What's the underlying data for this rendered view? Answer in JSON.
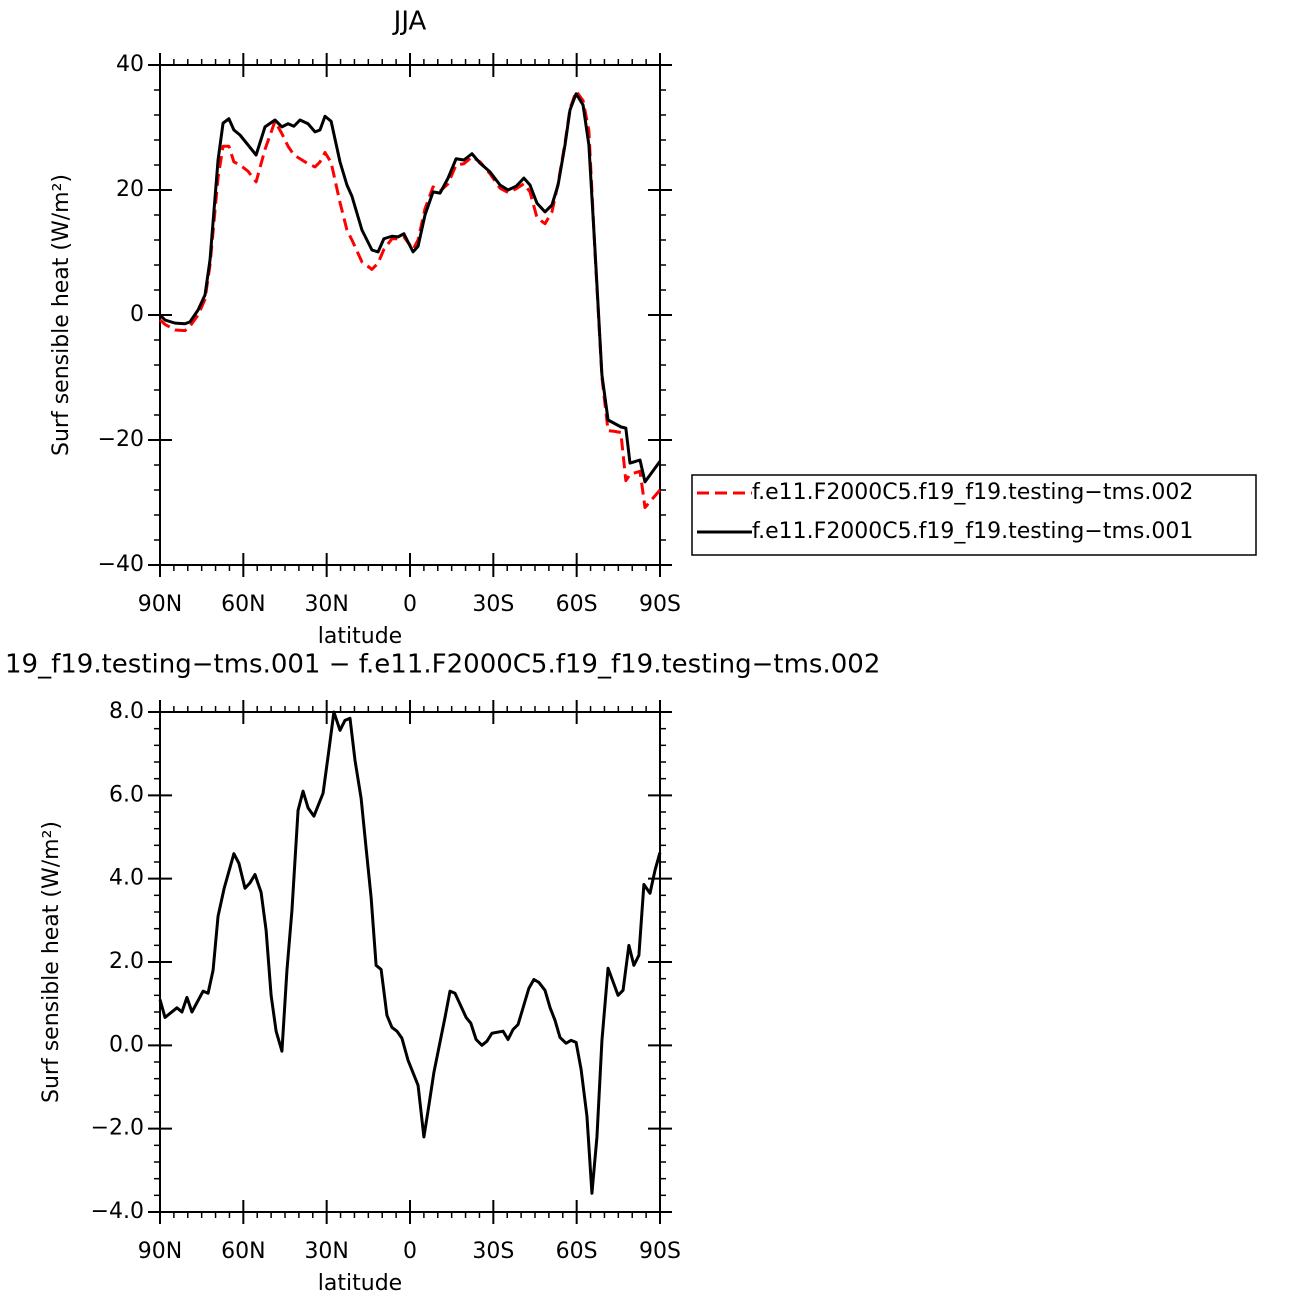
{
  "chart_data": [
    {
      "type": "line",
      "title": "JJA",
      "xlabel": "latitude",
      "ylabel": "Surf sensible heat (W/m²)",
      "x": [
        90,
        88.2,
        84.6,
        81,
        79.2,
        76.3,
        73.8,
        72,
        69.1,
        67.3,
        65.2,
        63.4,
        61.2,
        58.3,
        55.4,
        52.2,
        48.6,
        46.1,
        43.9,
        41.8,
        39.6,
        36.7,
        34.2,
        32.4,
        30.6,
        28.4,
        25.2,
        22.7,
        20.9,
        17.3,
        13.7,
        11.5,
        9.4,
        6.5,
        4.3,
        2.2,
        -1.1,
        -2.9,
        -5.4,
        -8.3,
        -10.8,
        -13.7,
        -16.6,
        -19.4,
        -22.3,
        -25.2,
        -28.8,
        -32.4,
        -35.3,
        -38.2,
        -41,
        -43.2,
        -45.7,
        -48.6,
        -51.1,
        -53.3,
        -55.8,
        -57.6,
        -59.8,
        -62.3,
        -64.4,
        -66.6,
        -69.1,
        -71.3,
        -73.4,
        -75.9,
        -77.7,
        -79.2,
        -82.8,
        -84.6,
        -90
      ],
      "series": [
        {
          "name": "f.e11.F2000C5.f19_f19.testing−tms.002",
          "color": "#ff0000",
          "line_style": "dashed",
          "values": [
            -0.8,
            -1.5,
            -2.4,
            -2.5,
            -1.8,
            0,
            2.5,
            8,
            22,
            27,
            27,
            24.5,
            24,
            23,
            21.3,
            26.5,
            31,
            29,
            27,
            25.6,
            25,
            24.2,
            23.7,
            24.5,
            26,
            24.4,
            18,
            13.6,
            12,
            8.5,
            7.3,
            8.3,
            10.5,
            12.2,
            12.2,
            12.5,
            10.5,
            12,
            17,
            20.5,
            19.8,
            21,
            24,
            24.2,
            25.3,
            24.5,
            22.6,
            20.3,
            19.6,
            20.2,
            21,
            19.7,
            15.6,
            14.6,
            16.5,
            21,
            27.5,
            33,
            35.8,
            34.3,
            29.5,
            10,
            -10,
            -18.5,
            -18.6,
            -18.8,
            -26.5,
            -25.5,
            -25,
            -30.8,
            -28
          ]
        },
        {
          "name": "f.e11.F2000C5.f19_f19.testing−tms.001",
          "color": "#000000",
          "line_style": "solid",
          "values": [
            0,
            -0.8,
            -1.3,
            -1.4,
            -1.1,
            0.8,
            3.2,
            8.8,
            24.8,
            30.7,
            31.4,
            29.6,
            28.8,
            27.2,
            25.6,
            30.1,
            31.2,
            30.1,
            30.6,
            30.2,
            31.2,
            30.6,
            29.3,
            29.6,
            31.8,
            31.0,
            24.5,
            20.8,
            19,
            13.6,
            10.4,
            10.1,
            12.2,
            12.6,
            12.5,
            13,
            10.1,
            11,
            16,
            19.7,
            19.5,
            21.9,
            25,
            24.8,
            25.8,
            24.3,
            22.9,
            20.8,
            20,
            20.6,
            21.9,
            20.8,
            17.9,
            16.5,
            17.6,
            20.8,
            27.2,
            32.8,
            35.4,
            33.6,
            27.2,
            10.4,
            -9.6,
            -16.8,
            -17.3,
            -17.9,
            -18.1,
            -23.7,
            -23.2,
            -26.7,
            -23.4
          ]
        }
      ],
      "xlim": [
        90,
        -90
      ],
      "xticks": [
        {
          "value": 90,
          "label": "90N"
        },
        {
          "value": 60,
          "label": "60N"
        },
        {
          "value": 30,
          "label": "30N"
        },
        0,
        {
          "value": -30,
          "label": "30S"
        },
        {
          "value": -60,
          "label": "60S"
        },
        {
          "value": -90,
          "label": "90S"
        }
      ],
      "ylim": [
        -40,
        40
      ],
      "yticks": [
        {
          "value": -40,
          "label": "−40"
        },
        {
          "value": -20,
          "label": "−20"
        },
        0,
        20,
        40
      ]
    },
    {
      "type": "line",
      "title": "19_f19.testing−tms.001 − f.e11.F2000C5.f19_f19.testing−tms.002",
      "xlabel": "latitude",
      "ylabel": "Surf sensible heat (W/m²)",
      "x": [
        90,
        88.2,
        83.9,
        82.1,
        80.3,
        78.5,
        74.5,
        72.7,
        70.9,
        69.1,
        66.9,
        63.4,
        61.6,
        59.4,
        57.6,
        55.8,
        53.6,
        51.8,
        50,
        48.2,
        46.1,
        44.3,
        42.5,
        40.3,
        38.5,
        36.7,
        34.6,
        31.3,
        29.2,
        27.4,
        25.2,
        23.4,
        21.6,
        19.8,
        17.6,
        15.8,
        14,
        12.2,
        10.4,
        8.3,
        6.5,
        4.7,
        2.9,
        0.7,
        -2.9,
        -5,
        -6.8,
        -8.6,
        -12.6,
        -14.4,
        -16.2,
        -20.2,
        -21.9,
        -23.8,
        -25.9,
        -27.7,
        -29.5,
        -33.5,
        -35.3,
        -37.1,
        -38.9,
        -42.8,
        -44.6,
        -46.4,
        -48.6,
        -50.4,
        -52.2,
        -54,
        -56.2,
        -58,
        -59.8,
        -61.6,
        -63.7,
        -65.5,
        -67.3,
        -69.1,
        -71.3,
        -74.9,
        -76.7,
        -78.8,
        -80.6,
        -82.4,
        -84.2,
        -86.4,
        -88.2,
        -90
      ],
      "values": [
        1.1,
        0.67,
        0.9,
        0.8,
        1.15,
        0.8,
        1.3,
        1.25,
        1.8,
        3.1,
        3.77,
        4.6,
        4.37,
        3.77,
        3.9,
        4.1,
        3.67,
        2.76,
        1.2,
        0.34,
        -0.14,
        1.8,
        3.24,
        5.64,
        6.1,
        5.7,
        5.5,
        6.05,
        7.08,
        8.0,
        7.56,
        7.8,
        7.85,
        6.84,
        5.93,
        4.73,
        3.55,
        1.92,
        1.82,
        0.72,
        0.43,
        0.34,
        0.17,
        -0.36,
        -0.96,
        -2.2,
        -1.44,
        -0.65,
        0.67,
        1.3,
        1.25,
        0.67,
        0.53,
        0.14,
        0,
        0.1,
        0.29,
        0.34,
        0.14,
        0.38,
        0.5,
        1.37,
        1.58,
        1.51,
        1.32,
        0.91,
        0.6,
        0.19,
        0.05,
        0.12,
        0.07,
        -0.58,
        -1.7,
        -3.55,
        -2.2,
        0.12,
        1.85,
        1.2,
        1.32,
        2.4,
        1.92,
        2.16,
        3.86,
        3.65,
        4.2,
        4.63
      ],
      "color": "#000000",
      "line_style": "solid",
      "xlim": [
        90,
        -90
      ],
      "xticks": [
        {
          "value": 90,
          "label": "90N"
        },
        {
          "value": 60,
          "label": "60N"
        },
        {
          "value": 30,
          "label": "30N"
        },
        0,
        {
          "value": -30,
          "label": "30S"
        },
        {
          "value": -60,
          "label": "60S"
        },
        {
          "value": -90,
          "label": "90S"
        }
      ],
      "ylim": [
        -4,
        8
      ],
      "yticks": [
        {
          "value": -4,
          "label": "−4.0"
        },
        {
          "value": -2,
          "label": "−2.0"
        },
        {
          "value": 0,
          "label": "0.0"
        },
        {
          "value": 2,
          "label": "2.0"
        },
        {
          "value": 4,
          "label": "4.0"
        },
        {
          "value": 6,
          "label": "6.0"
        },
        {
          "value": 8,
          "label": "8.0"
        }
      ]
    }
  ]
}
